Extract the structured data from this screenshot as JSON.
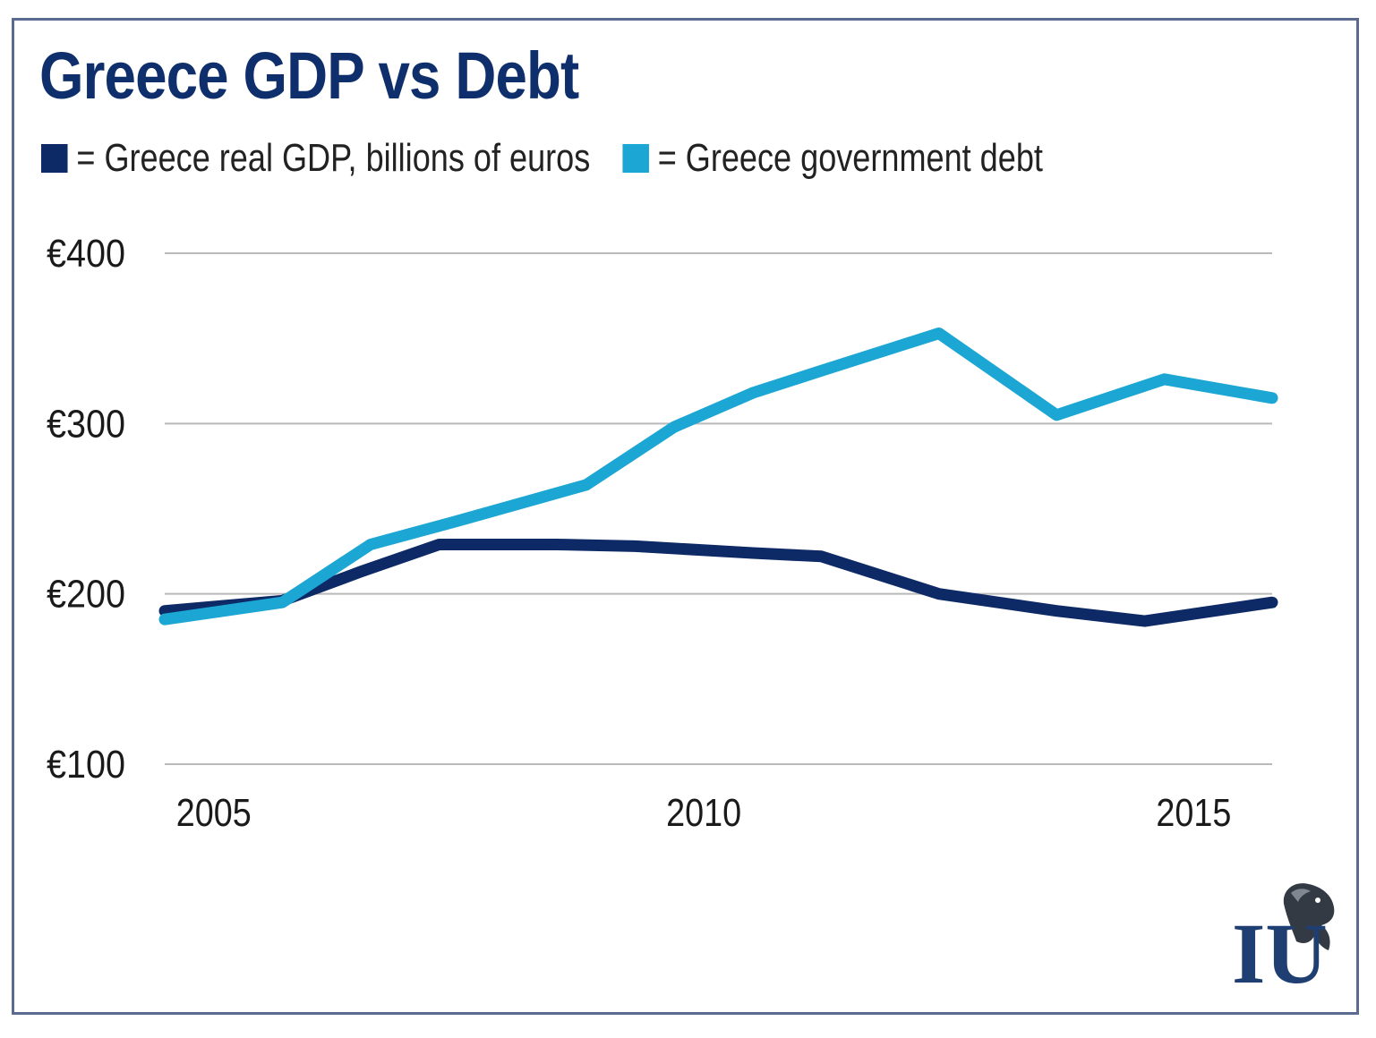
{
  "chart_data": {
    "type": "line",
    "title": "Greece GDP vs Debt",
    "xlabel": "",
    "ylabel": "",
    "x": [
      2004.5,
      2005.7,
      2006.6,
      2007.5,
      2008.8,
      2009.7,
      2010.5,
      2011.2,
      2012.4,
      2013.6,
      2014.7,
      2015.8
    ],
    "x_ticks": [
      {
        "value": 2005,
        "label": "2005"
      },
      {
        "value": 2010,
        "label": "2010"
      },
      {
        "value": 2015,
        "label": "2015"
      }
    ],
    "y_ticks": [
      {
        "value": 100,
        "label": "€100"
      },
      {
        "value": 200,
        "label": "€200"
      },
      {
        "value": 300,
        "label": "€300"
      },
      {
        "value": 400,
        "label": "€400"
      }
    ],
    "xlim": [
      2004.5,
      2015.8
    ],
    "ylim": [
      100,
      400
    ],
    "grid": "horizontal",
    "legend_position": "top-left",
    "series": [
      {
        "name": "= Greece real GDP, billions of euros",
        "color": "#0e2a66",
        "x": [
          2004.5,
          2005.7,
          2006.5,
          2007.3,
          2008.5,
          2009.3,
          2010.5,
          2011.2,
          2012.4,
          2013.6,
          2014.5,
          2015.8
        ],
        "values": [
          190,
          196,
          213,
          229,
          229,
          228,
          224,
          222,
          200,
          190,
          184,
          195
        ]
      },
      {
        "name": "= Greece government debt",
        "color": "#1ca6d4",
        "x": [
          2004.5,
          2005.7,
          2006.6,
          2007.5,
          2008.8,
          2009.7,
          2010.5,
          2011.2,
          2012.4,
          2013.6,
          2014.7,
          2015.8
        ],
        "values": [
          185,
          195,
          229,
          243,
          264,
          298,
          318,
          331,
          353,
          305,
          326,
          315
        ]
      }
    ]
  },
  "logo": {
    "name": "iu-lion-logo-icon",
    "text": "IU",
    "color": "#1f3f72"
  }
}
